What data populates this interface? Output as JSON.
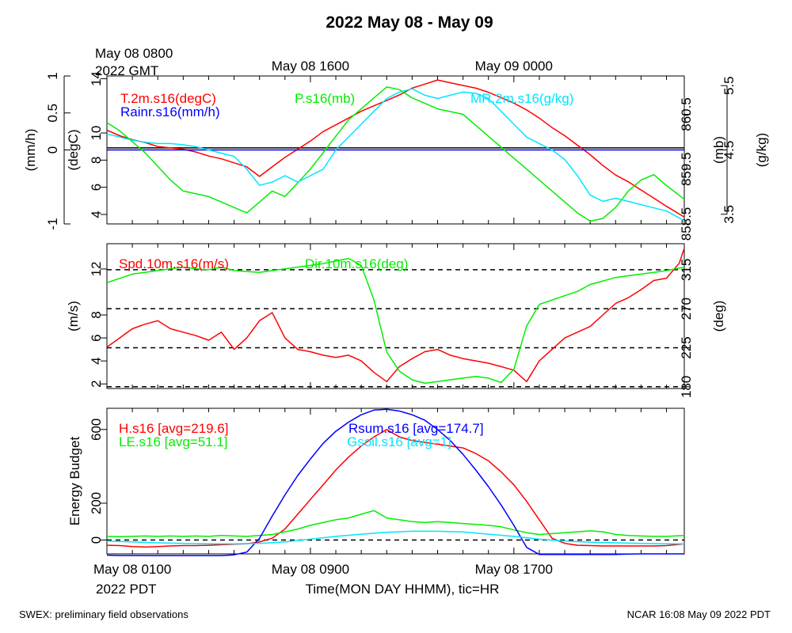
{
  "page": {
    "title": "2022 May 08 - May 09",
    "footer_left": "SWEX: preliminary field observations",
    "footer_right": "NCAR 16:08 May 09 2022 PDT"
  },
  "top_axis": {
    "start_label": [
      "May 08 0800",
      "2022 GMT"
    ],
    "labels": [
      {
        "text": "May 08 1600",
        "hour": 8
      },
      {
        "text": "May 09 0000",
        "hour": 16
      }
    ]
  },
  "bottom_axis": {
    "start_label": [
      "May 08 0100",
      "2022 PDT"
    ],
    "labels": [
      {
        "text": "May 08 0900",
        "hour": 8
      },
      {
        "text": "May 08 1700",
        "hour": 16
      }
    ],
    "xlabel": "Time(MON DAY HHMM), tic=HR"
  },
  "chart_data": [
    {
      "type": "line",
      "name": "panel-1",
      "xlim": [
        0,
        22.7
      ],
      "axes": {
        "rain": {
          "label": "(mm/h)",
          "ylim": [
            -1.0,
            1.0
          ],
          "ticks": [
            -1.0,
            0.0,
            0.5,
            1.0
          ],
          "side": "left-outer"
        },
        "temp": {
          "label": "(degC)",
          "ylim": [
            3.3,
            14.2
          ],
          "ticks": [
            4,
            6,
            8,
            10,
            14
          ],
          "side": "left-inner"
        },
        "pres": {
          "label": "(mb)",
          "ylim": [
            858.5,
            861.2
          ],
          "ticks": [
            858.5,
            859.5,
            860.5
          ],
          "side": "right-inner"
        },
        "mr": {
          "label": "(g/kg)",
          "ylim": [
            3.35,
            5.65
          ],
          "ticks": [
            3.5,
            4.5,
            5.5
          ],
          "side": "right-outer"
        }
      },
      "hlines": [
        {
          "axis": "temp",
          "value": 8.9,
          "style": "solid"
        }
      ],
      "series": [
        {
          "name": "T.2m.s16(degC)",
          "color": "#ff0000",
          "axis": "temp",
          "x": [
            0,
            0.5,
            1,
            1.5,
            2,
            2.5,
            3,
            3.5,
            4,
            4.5,
            5,
            5.5,
            6,
            6.5,
            7,
            7.5,
            8,
            8.5,
            9,
            9.5,
            10,
            10.5,
            11,
            11.5,
            12,
            12.5,
            13,
            13.5,
            14,
            14.5,
            15,
            15.5,
            16,
            16.5,
            17,
            17.5,
            18,
            18.5,
            19,
            19.5,
            20,
            20.5,
            21,
            21.5,
            22,
            22.7
          ],
          "y": [
            10.2,
            9.8,
            9.5,
            9.3,
            9.0,
            8.9,
            8.8,
            8.6,
            8.3,
            8.1,
            7.8,
            7.5,
            6.8,
            7.5,
            8.2,
            8.8,
            9.4,
            10.1,
            10.6,
            11.1,
            11.6,
            12.0,
            12.4,
            12.8,
            13.3,
            13.6,
            13.9,
            13.7,
            13.5,
            13.3,
            13.0,
            12.6,
            12.2,
            11.7,
            11.1,
            10.4,
            9.8,
            9.1,
            8.4,
            7.6,
            6.9,
            6.4,
            5.8,
            5.2,
            4.6,
            3.8
          ]
        },
        {
          "name": "Rainr.s16(mm/h)",
          "color": "#0000ff",
          "axis": "rain",
          "x": [
            0,
            22.7
          ],
          "y": [
            0.0,
            0.0
          ]
        },
        {
          "name": "P.s16(mb)",
          "color": "#00ee00",
          "axis": "pres",
          "x": [
            0,
            0.5,
            1,
            1.5,
            2,
            2.5,
            3,
            3.5,
            4,
            4.5,
            5,
            5.5,
            6,
            6.5,
            7,
            7.5,
            8,
            8.5,
            9,
            9.5,
            10,
            10.5,
            11,
            11.5,
            12,
            12.5,
            13,
            13.5,
            14,
            14.5,
            15,
            15.5,
            16,
            16.5,
            17,
            17.5,
            18,
            18.5,
            19,
            19.5,
            20,
            20.5,
            21,
            21.5,
            22,
            22.7
          ],
          "y": [
            860.35,
            860.2,
            860.0,
            859.8,
            859.55,
            859.3,
            859.1,
            859.05,
            859.0,
            858.9,
            858.8,
            858.7,
            858.9,
            859.1,
            859.0,
            859.25,
            859.5,
            859.8,
            860.1,
            860.4,
            860.6,
            860.8,
            861.0,
            860.95,
            860.8,
            860.7,
            860.6,
            860.55,
            860.5,
            860.3,
            860.1,
            859.9,
            859.7,
            859.5,
            859.3,
            859.1,
            858.9,
            858.7,
            858.55,
            858.6,
            858.8,
            859.1,
            859.3,
            859.4,
            859.2,
            858.95
          ]
        },
        {
          "name": "MR.2m.s16(g/kg)",
          "color": "#00e5ff",
          "axis": "mr",
          "x": [
            0,
            0.5,
            1,
            1.5,
            2,
            2.5,
            3,
            3.5,
            4,
            4.5,
            5,
            5.5,
            6,
            6.5,
            7,
            7.5,
            8,
            8.5,
            9,
            9.5,
            10,
            10.5,
            11,
            11.5,
            12,
            12.5,
            13,
            13.5,
            14,
            14.5,
            15,
            15.5,
            16,
            16.5,
            17,
            17.5,
            18,
            18.5,
            19,
            19.5,
            20,
            20.5,
            21,
            21.5,
            22,
            22.7
          ],
          "y": [
            4.75,
            4.7,
            4.65,
            4.62,
            4.6,
            4.6,
            4.58,
            4.55,
            4.5,
            4.45,
            4.4,
            4.2,
            3.95,
            4.0,
            4.1,
            4.0,
            4.1,
            4.2,
            4.5,
            4.7,
            4.9,
            5.1,
            5.3,
            5.4,
            5.45,
            5.35,
            5.3,
            5.35,
            5.4,
            5.38,
            5.3,
            5.1,
            4.9,
            4.7,
            4.6,
            4.5,
            4.35,
            4.1,
            3.8,
            3.7,
            3.75,
            3.7,
            3.65,
            3.6,
            3.55,
            3.4
          ]
        }
      ]
    },
    {
      "type": "line",
      "name": "panel-2",
      "xlim": [
        0,
        22.7
      ],
      "axes": {
        "spd": {
          "label": "(m/s)",
          "ylim": [
            1.6,
            14.2
          ],
          "ticks": [
            2,
            4,
            6,
            8,
            12
          ],
          "side": "left"
        },
        "dir": {
          "label": "(deg)",
          "ylim": [
            178,
            345
          ],
          "ticks": [
            180,
            225,
            270,
            315
          ],
          "side": "right"
        }
      },
      "hlines": [
        {
          "axis": "dir",
          "value": 180,
          "style": "dashed"
        },
        {
          "axis": "dir",
          "value": 225,
          "style": "dashed"
        },
        {
          "axis": "dir",
          "value": 270,
          "style": "dashed"
        },
        {
          "axis": "dir",
          "value": 315,
          "style": "dashed"
        }
      ],
      "series": [
        {
          "name": "Spd.10m.s16(m/s)",
          "color": "#ff0000",
          "axis": "spd",
          "x": [
            0,
            0.5,
            1,
            1.5,
            2,
            2.5,
            3,
            3.5,
            4,
            4.5,
            5,
            5.5,
            6,
            6.5,
            7,
            7.5,
            8,
            8.5,
            9,
            9.5,
            10,
            10.5,
            11,
            11.5,
            12,
            12.5,
            13,
            13.5,
            14,
            14.5,
            15,
            15.5,
            16,
            16.5,
            17,
            17.5,
            18,
            18.5,
            19,
            19.5,
            20,
            20.5,
            21,
            21.5,
            22,
            22.5,
            22.7
          ],
          "y": [
            5.2,
            6.0,
            6.8,
            7.2,
            7.5,
            6.8,
            6.5,
            6.2,
            5.8,
            6.5,
            5.0,
            6.0,
            7.5,
            8.2,
            6.0,
            5.0,
            4.8,
            4.5,
            4.3,
            4.5,
            4.0,
            3.0,
            2.2,
            3.5,
            4.2,
            4.8,
            5.0,
            4.5,
            4.2,
            4.0,
            3.8,
            3.5,
            3.2,
            2.2,
            4.0,
            5.0,
            6.0,
            6.5,
            7.0,
            8.0,
            9.0,
            9.5,
            10.2,
            11.0,
            11.2,
            12.5,
            13.8
          ]
        },
        {
          "name": "Dir.10m.s16(deg)",
          "color": "#00ee00",
          "axis": "dir",
          "x": [
            0,
            0.5,
            1,
            1.5,
            2,
            2.5,
            3,
            3.5,
            4,
            4.5,
            5,
            5.5,
            6,
            6.5,
            7,
            7.5,
            8,
            8.5,
            9,
            9.5,
            10,
            10.5,
            11,
            11.5,
            12,
            12.5,
            13,
            13.5,
            14,
            14.5,
            15,
            15.5,
            16,
            16.5,
            17,
            17.5,
            18,
            18.5,
            19,
            19.5,
            20,
            20.5,
            21,
            21.5,
            22,
            22.7
          ],
          "y": [
            300,
            305,
            310,
            312,
            314,
            316,
            318,
            316,
            315,
            318,
            314,
            313,
            312,
            314,
            316,
            318,
            320,
            322,
            325,
            328,
            320,
            280,
            220,
            198,
            188,
            184,
            186,
            188,
            190,
            192,
            190,
            185,
            200,
            250,
            275,
            280,
            285,
            290,
            298,
            302,
            306,
            308,
            310,
            312,
            314,
            318
          ]
        }
      ]
    },
    {
      "type": "line",
      "name": "panel-3",
      "xlim": [
        0,
        22.7
      ],
      "ylabel": "Energy Budget",
      "ylim": [
        -75,
        715
      ],
      "yticks": [
        0,
        200,
        600
      ],
      "hlines": [
        {
          "value": 0,
          "style": "dashed"
        }
      ],
      "series": [
        {
          "name": "H.s16 [avg=219.6]",
          "color": "#ff0000",
          "x": [
            0,
            0.5,
            1,
            1.5,
            2,
            2.5,
            3,
            3.5,
            4,
            4.5,
            5,
            5.5,
            6,
            6.5,
            7,
            7.5,
            8,
            8.5,
            9,
            9.5,
            10,
            10.5,
            11,
            11.5,
            12,
            12.5,
            13,
            13.5,
            14,
            14.5,
            15,
            15.5,
            16,
            16.5,
            17,
            17.5,
            18,
            18.5,
            19,
            19.5,
            20,
            20.5,
            21,
            21.5,
            22,
            22.7
          ],
          "y": [
            -28,
            -30,
            -35,
            -38,
            -35,
            -32,
            -30,
            -30,
            -28,
            -25,
            -22,
            -20,
            -10,
            10,
            60,
            140,
            220,
            300,
            380,
            450,
            510,
            560,
            600,
            560,
            540,
            530,
            520,
            510,
            500,
            470,
            430,
            370,
            300,
            210,
            110,
            10,
            -18,
            -28,
            -30,
            -32,
            -32,
            -32,
            -32,
            -32,
            -30,
            -20
          ]
        },
        {
          "name": "LE.s16 [avg=51.1]",
          "color": "#00ee00",
          "x": [
            0,
            0.5,
            1,
            1.5,
            2,
            2.5,
            3,
            3.5,
            4,
            4.5,
            5,
            5.5,
            6,
            6.5,
            7,
            7.5,
            8,
            8.5,
            9,
            9.5,
            10,
            10.5,
            11,
            11.5,
            12,
            12.5,
            13,
            13.5,
            14,
            14.5,
            15,
            15.5,
            16,
            16.5,
            17,
            17.5,
            18,
            18.5,
            19,
            19.5,
            20,
            20.5,
            21,
            21.5,
            22,
            22.7
          ],
          "y": [
            20,
            18,
            20,
            22,
            20,
            22,
            20,
            22,
            20,
            25,
            22,
            20,
            25,
            30,
            45,
            60,
            80,
            95,
            110,
            120,
            140,
            160,
            120,
            110,
            100,
            95,
            100,
            95,
            90,
            85,
            80,
            72,
            55,
            40,
            30,
            35,
            40,
            45,
            50,
            45,
            30,
            25,
            22,
            20,
            20,
            25
          ]
        },
        {
          "name": "Rsum.s16 [avg=174.7]",
          "color": "#0000ff",
          "x": [
            0,
            0.5,
            1,
            1.5,
            2,
            2.5,
            3,
            3.5,
            4,
            4.5,
            5,
            5.5,
            6,
            6.5,
            7,
            7.5,
            8,
            8.5,
            9,
            9.5,
            10,
            10.5,
            11,
            11.5,
            12,
            12.5,
            13,
            13.5,
            14,
            14.5,
            15,
            15.5,
            16,
            16.5,
            17,
            17.5,
            18,
            18.5,
            19,
            19.5,
            20,
            20.5,
            21,
            21.5,
            22,
            22.7
          ],
          "y": [
            -82,
            -84,
            -84,
            -85,
            -85,
            -85,
            -85,
            -85,
            -85,
            -85,
            -80,
            -65,
            10,
            130,
            245,
            350,
            440,
            525,
            590,
            640,
            680,
            705,
            710,
            700,
            680,
            650,
            600,
            540,
            465,
            380,
            290,
            190,
            80,
            -40,
            -78,
            -78,
            -78,
            -78,
            -78,
            -78,
            -78,
            -76,
            -75,
            -75,
            -75,
            -75
          ]
        },
        {
          "name": "Gsoil.s16 [avg=1]",
          "color": "#00e5ff",
          "x": [
            0,
            1,
            2,
            3,
            4,
            5,
            6,
            7,
            8,
            9,
            10,
            11,
            12,
            13,
            14,
            15,
            16,
            17,
            18,
            19,
            20,
            21,
            22,
            22.7
          ],
          "y": [
            -5,
            -10,
            -15,
            -18,
            -20,
            -20,
            -18,
            -10,
            5,
            20,
            32,
            42,
            48,
            48,
            44,
            32,
            20,
            5,
            -5,
            -12,
            -15,
            -18,
            -20,
            -20
          ]
        }
      ]
    }
  ]
}
